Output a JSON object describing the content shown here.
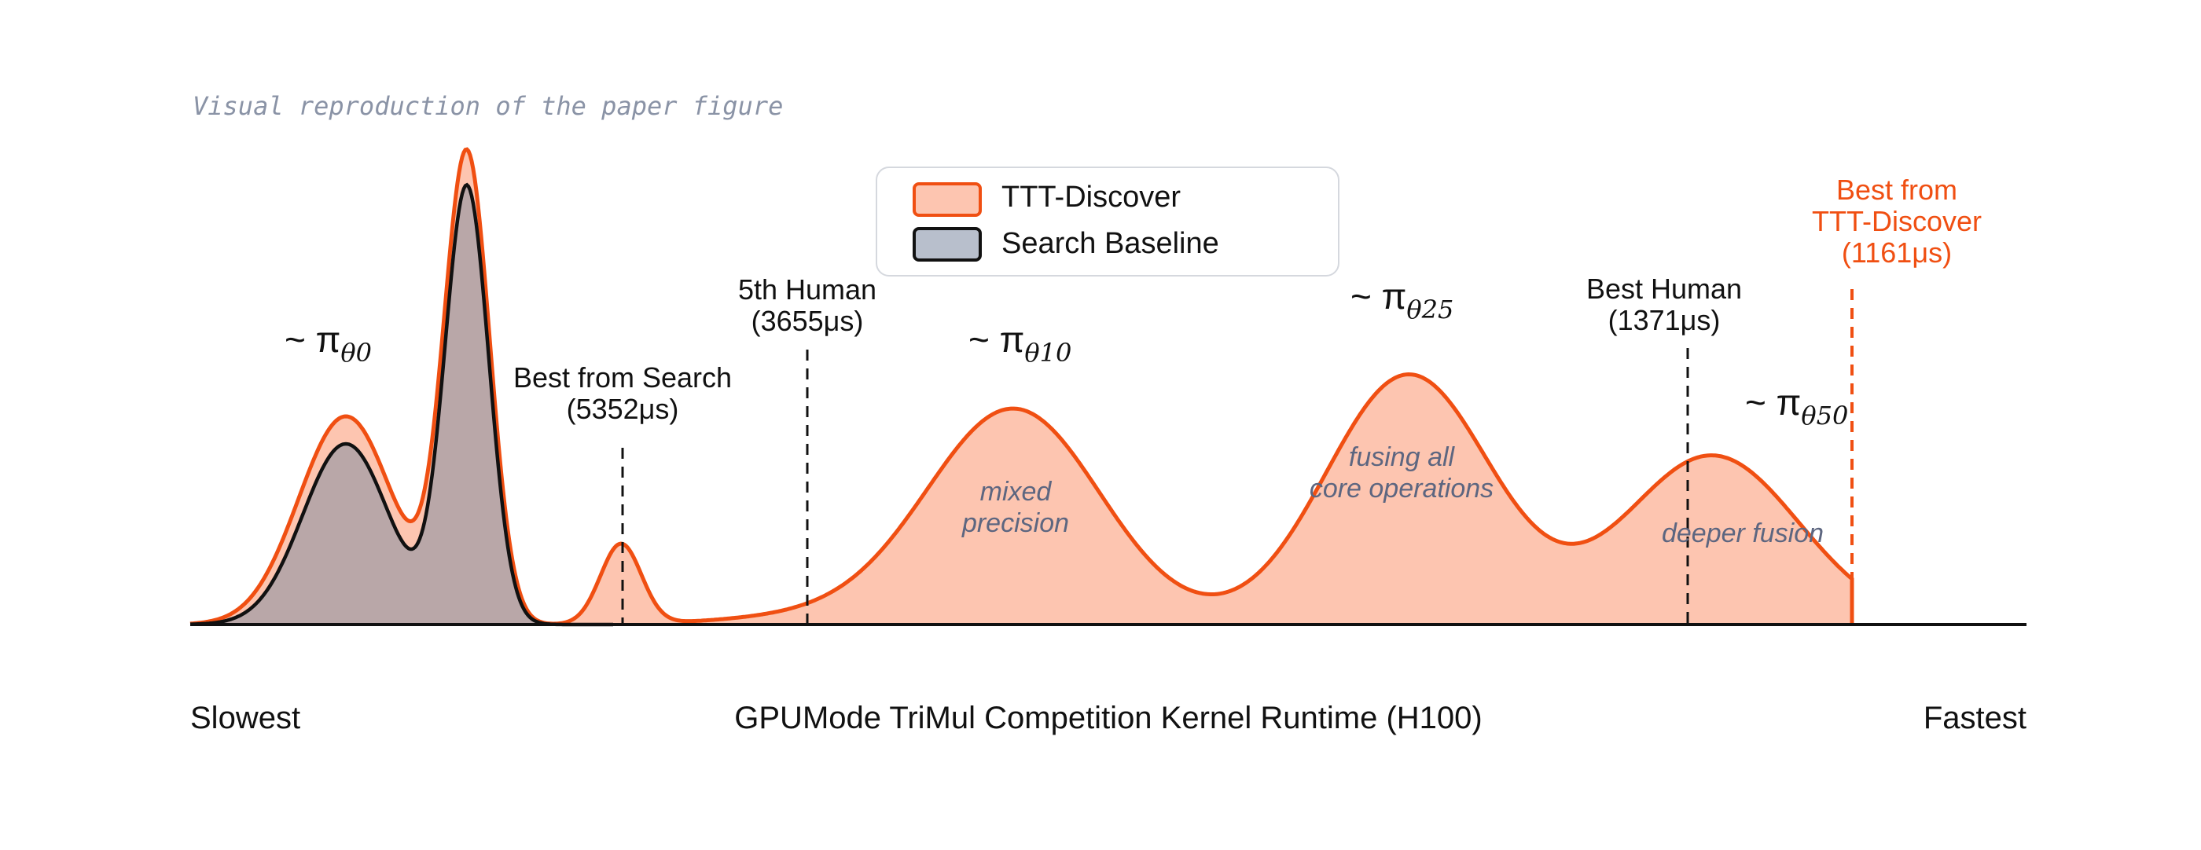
{
  "caption": "Visual reproduction of the paper figure",
  "chart_data": {
    "type": "area",
    "axis": {
      "xlabel": "GPUMode TriMul Competition Kernel Runtime (H100)",
      "left_label": "Slowest",
      "right_label": "Fastest",
      "direction": "runtime decreases left to right"
    },
    "legend": {
      "placement": "top-center",
      "entries": [
        {
          "label": "TTT-Discover",
          "fill": "#fdc5b0",
          "stroke": "#f04f12"
        },
        {
          "label": "Search Baseline",
          "fill": "#b8bfcc",
          "stroke": "#111111"
        }
      ]
    },
    "series": [
      {
        "name": "TTT-Discover",
        "fill": "#fdc5b0",
        "stroke": "#f04f12",
        "ends_at_runtime_us": 1161,
        "components": [
          {
            "label": "~ π_θ0",
            "modes": [
              "slow peak 1",
              "slow peak 2"
            ]
          },
          {
            "label": "~ π_θ10",
            "annotation": "mixed precision"
          },
          {
            "label": "~ π_θ25",
            "annotation": "fusing all core operations"
          },
          {
            "label": "~ π_θ50",
            "annotation": "deeper fusion"
          }
        ]
      },
      {
        "name": "Search Baseline",
        "fill": "#b8bfcc",
        "stroke": "#111111",
        "component": "~ π_θ0"
      }
    ],
    "markers": [
      {
        "name": "Best from Search",
        "value_label": "(5352μs)",
        "runtime_us": 5352,
        "style": "dashed",
        "color": "#111111"
      },
      {
        "name": "5th Human",
        "value_label": "(3655μs)",
        "runtime_us": 3655,
        "style": "dashed",
        "color": "#111111"
      },
      {
        "name": "Best Human",
        "value_label": "(1371μs)",
        "runtime_us": 1371,
        "style": "dashed",
        "color": "#111111"
      },
      {
        "name_lines": [
          "Best from",
          "TTT-Discover"
        ],
        "value_label": "(1161μs)",
        "runtime_us": 1161,
        "style": "dashed",
        "color": "#f04f12"
      }
    ],
    "policy_labels": [
      {
        "prefix": "~ π",
        "sub": "θ0"
      },
      {
        "prefix": "~ π",
        "sub": "θ10"
      },
      {
        "prefix": "~ π",
        "sub": "θ25"
      },
      {
        "prefix": "~ π",
        "sub": "θ50"
      }
    ],
    "annotations": [
      {
        "lines": [
          "mixed",
          "precision"
        ]
      },
      {
        "lines": [
          "fusing all",
          "core operations"
        ]
      },
      {
        "lines": [
          "deeper fusion"
        ]
      }
    ],
    "grid": false
  }
}
